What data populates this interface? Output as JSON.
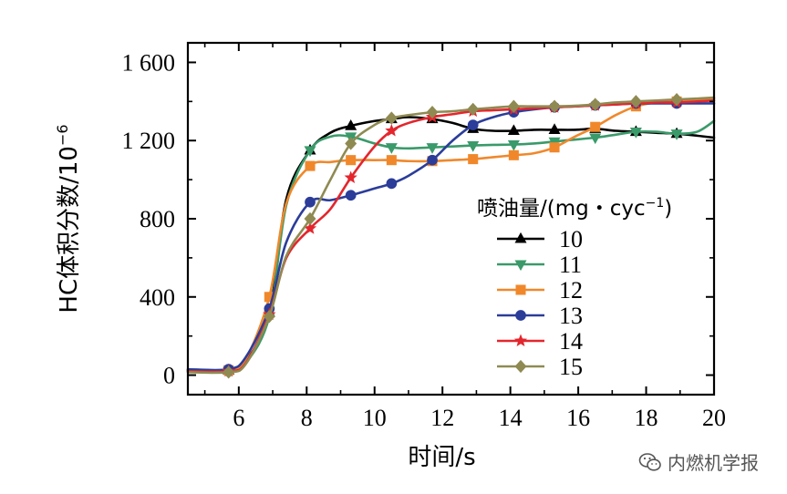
{
  "chart_data": {
    "type": "line",
    "xlabel": "时间/s",
    "ylabel": "HC体积分数/10",
    "ylabel_sup": "−6",
    "xlim": [
      4.5,
      20
    ],
    "ylim": [
      -100,
      1700
    ],
    "x_ticks": [
      6,
      8,
      10,
      12,
      14,
      16,
      18,
      20
    ],
    "x_tick_labels": [
      "6",
      "8",
      "10",
      "12",
      "14",
      "16",
      "18",
      "20"
    ],
    "y_ticks": [
      0,
      400,
      800,
      1200,
      1600
    ],
    "y_tick_labels": [
      "0",
      "400",
      "800",
      "1 200",
      "1 600"
    ],
    "legend": {
      "title": "喷油量/(mg・cyc",
      "title_sup": "−1",
      "title_close": ")",
      "placement": "right-center"
    },
    "series": [
      {
        "name": "10",
        "color": "#000000",
        "marker": "triangle-up",
        "x": [
          4.5,
          5.7,
          6.2,
          6.9,
          7.4,
          8.1,
          8.7,
          9.3,
          10.0,
          10.5,
          11.0,
          11.7,
          12.3,
          12.9,
          13.5,
          14.1,
          14.7,
          15.3,
          15.9,
          16.5,
          17.1,
          17.7,
          18.3,
          18.9,
          19.5,
          20.0
        ],
        "y": [
          25,
          25,
          70,
          320,
          900,
          1150,
          1240,
          1275,
          1300,
          1310,
          1320,
          1310,
          1290,
          1260,
          1250,
          1250,
          1255,
          1255,
          1255,
          1260,
          1250,
          1245,
          1240,
          1235,
          1225,
          1215
        ],
        "marker_x": [
          5.7,
          6.9,
          8.1,
          9.3,
          10.5,
          11.7,
          12.9,
          14.1,
          15.3,
          16.5,
          17.7,
          18.9
        ]
      },
      {
        "name": "11",
        "color": "#3a9a6a",
        "marker": "triangle-down",
        "x": [
          4.5,
          5.7,
          6.2,
          6.9,
          7.4,
          8.1,
          8.7,
          9.3,
          10.0,
          10.5,
          11.0,
          11.7,
          12.3,
          12.9,
          13.5,
          14.1,
          14.7,
          15.3,
          15.9,
          16.5,
          17.1,
          17.7,
          18.3,
          18.9,
          19.5,
          20.0
        ],
        "y": [
          20,
          20,
          60,
          300,
          870,
          1150,
          1220,
          1220,
          1185,
          1165,
          1160,
          1165,
          1170,
          1175,
          1178,
          1180,
          1185,
          1195,
          1205,
          1215,
          1230,
          1245,
          1245,
          1235,
          1245,
          1300
        ],
        "marker_x": [
          5.7,
          6.9,
          8.1,
          9.3,
          10.5,
          11.7,
          12.9,
          14.1,
          15.3,
          16.5,
          17.7,
          18.9
        ]
      },
      {
        "name": "12",
        "color": "#f0882b",
        "marker": "square",
        "x": [
          4.5,
          5.7,
          6.2,
          6.9,
          7.4,
          8.1,
          8.7,
          9.3,
          10.0,
          10.5,
          11.0,
          11.7,
          12.3,
          12.9,
          13.5,
          14.1,
          14.7,
          15.3,
          15.9,
          16.5,
          17.1,
          17.7,
          18.3,
          18.9,
          19.5,
          20.0
        ],
        "y": [
          25,
          25,
          80,
          400,
          880,
          1070,
          1090,
          1100,
          1100,
          1100,
          1095,
          1095,
          1100,
          1105,
          1115,
          1125,
          1135,
          1165,
          1220,
          1270,
          1330,
          1375,
          1395,
          1400,
          1405,
          1415
        ],
        "marker_x": [
          5.7,
          6.9,
          8.1,
          9.3,
          10.5,
          11.7,
          12.9,
          14.1,
          15.3,
          16.5,
          17.7,
          18.9
        ]
      },
      {
        "name": "13",
        "color": "#2b3d99",
        "marker": "circle",
        "x": [
          4.5,
          5.7,
          6.2,
          6.9,
          7.4,
          8.1,
          8.7,
          9.3,
          10.0,
          10.5,
          11.0,
          11.7,
          12.3,
          12.9,
          13.5,
          14.1,
          14.7,
          15.3,
          15.9,
          16.5,
          17.1,
          17.7,
          18.3,
          18.9,
          19.5,
          20.0
        ],
        "y": [
          30,
          30,
          90,
          340,
          680,
          885,
          895,
          920,
          955,
          980,
          1020,
          1100,
          1200,
          1280,
          1320,
          1345,
          1360,
          1370,
          1375,
          1380,
          1385,
          1390,
          1390,
          1390,
          1390,
          1390
        ],
        "marker_x": [
          5.7,
          6.9,
          8.1,
          9.3,
          10.5,
          11.7,
          12.9,
          14.1,
          15.3,
          16.5,
          17.7,
          18.9
        ]
      },
      {
        "name": "14",
        "color": "#e3262d",
        "marker": "star",
        "x": [
          4.5,
          5.7,
          6.2,
          6.9,
          7.4,
          8.1,
          8.7,
          9.3,
          10.0,
          10.5,
          11.0,
          11.7,
          12.3,
          12.9,
          13.5,
          14.1,
          14.7,
          15.3,
          15.9,
          16.5,
          17.1,
          17.7,
          18.3,
          18.9,
          19.5,
          20.0
        ],
        "y": [
          20,
          20,
          60,
          310,
          600,
          750,
          850,
          1010,
          1170,
          1250,
          1290,
          1320,
          1335,
          1350,
          1355,
          1360,
          1365,
          1370,
          1375,
          1380,
          1385,
          1390,
          1395,
          1395,
          1400,
          1405
        ],
        "marker_x": [
          5.7,
          6.9,
          8.1,
          9.3,
          10.5,
          11.7,
          12.9,
          14.1,
          15.3,
          16.5,
          17.7,
          18.9
        ]
      },
      {
        "name": "15",
        "color": "#8f8a52",
        "marker": "diamond",
        "x": [
          4.5,
          5.7,
          6.2,
          6.9,
          7.4,
          8.1,
          8.7,
          9.3,
          10.0,
          10.5,
          11.0,
          11.7,
          12.3,
          12.9,
          13.5,
          14.1,
          14.7,
          15.3,
          15.9,
          16.5,
          17.1,
          17.7,
          18.3,
          18.9,
          19.5,
          20.0
        ],
        "y": [
          15,
          15,
          55,
          300,
          610,
          800,
          1000,
          1185,
          1280,
          1315,
          1330,
          1345,
          1350,
          1360,
          1368,
          1375,
          1375,
          1375,
          1378,
          1385,
          1395,
          1400,
          1405,
          1410,
          1415,
          1420
        ],
        "marker_x": [
          5.7,
          6.9,
          8.1,
          9.3,
          10.5,
          11.7,
          12.9,
          14.1,
          15.3,
          16.5,
          17.7,
          18.9
        ]
      }
    ]
  },
  "watermark": {
    "text": "内燃机学报"
  }
}
